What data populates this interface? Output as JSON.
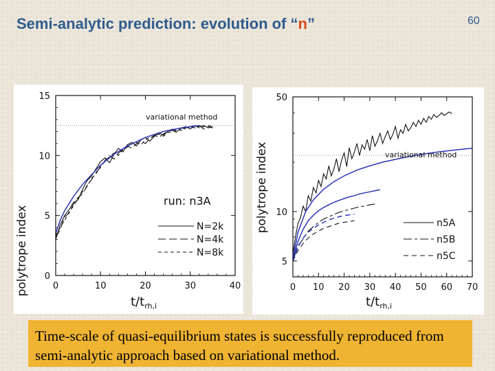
{
  "slide": {
    "title_main": "Semi-analytic prediction: evolution of “",
    "title_var": "n",
    "title_end": "”",
    "number": "60",
    "caption": "Time-scale of quasi-equilibrium states is successfully reproduced from semi-analytic approach based on variational method."
  },
  "colors": {
    "title": "#2e5b8e",
    "title_highlight": "#d2491a",
    "caption_bg": "#f0b433",
    "variational": "#2b35b5",
    "nbody": "#111111"
  },
  "chart_data": [
    {
      "type": "line",
      "xlabel_main": "t/t",
      "xlabel_sub": "rh,i",
      "ylabel": "polytrope index",
      "xlim": [
        0,
        40
      ],
      "ylim": [
        0,
        15
      ],
      "x_ticks": [
        0,
        10,
        20,
        30,
        40
      ],
      "y_ticks": [
        0,
        5,
        10,
        15
      ],
      "reference_line_y": 12.5,
      "annotation": "run: n3A",
      "variational_label": "variational method",
      "variational": {
        "name": "variational method",
        "x": [
          0,
          1,
          2,
          4,
          6,
          8,
          10,
          13,
          16,
          20,
          24,
          28,
          32
        ],
        "y": [
          3.5,
          4.6,
          5.4,
          6.6,
          7.6,
          8.4,
          9.2,
          10.1,
          10.8,
          11.5,
          12.0,
          12.3,
          12.5
        ]
      },
      "series": [
        {
          "name": "N=2k",
          "style": "solid",
          "x": [
            0,
            1,
            2,
            3,
            4,
            5,
            6,
            7,
            8,
            9,
            10,
            11,
            12,
            13,
            14,
            15,
            16,
            17,
            18,
            19,
            20,
            21,
            22,
            23,
            24,
            25,
            26,
            27,
            28,
            29,
            30,
            31,
            32,
            33,
            34,
            35
          ],
          "y": [
            3.0,
            4.2,
            5.0,
            5.5,
            6.1,
            6.3,
            7.2,
            7.9,
            8.3,
            8.9,
            9.5,
            9.8,
            9.4,
            10.1,
            10.6,
            10.3,
            10.9,
            11.1,
            10.8,
            11.3,
            11.5,
            11.2,
            11.6,
            11.9,
            11.7,
            12.0,
            12.2,
            12.0,
            12.3,
            12.4,
            12.2,
            12.5,
            12.4,
            12.5,
            12.3,
            12.4
          ]
        },
        {
          "name": "N=4k",
          "style": "long-dash",
          "x": [
            0,
            1,
            2,
            3,
            4,
            5,
            6,
            7,
            8,
            9,
            10,
            11,
            12,
            13,
            14,
            15,
            16,
            17,
            18,
            19,
            20,
            21,
            22,
            23,
            24,
            25,
            26,
            27,
            28,
            29,
            30,
            31,
            32,
            33,
            34,
            35
          ],
          "y": [
            3.2,
            3.8,
            4.9,
            5.2,
            6.0,
            6.5,
            6.8,
            7.5,
            8.0,
            8.6,
            9.0,
            9.6,
            10.0,
            9.7,
            10.2,
            10.5,
            10.8,
            10.6,
            11.0,
            11.2,
            11.0,
            11.4,
            11.7,
            11.5,
            11.8,
            12.0,
            12.1,
            11.9,
            12.3,
            12.2,
            12.4,
            12.3,
            12.5,
            12.2,
            12.4,
            12.3
          ]
        },
        {
          "name": "N=8k",
          "style": "short-dash",
          "x": [
            0,
            1,
            2,
            3,
            4,
            5,
            6,
            7,
            8,
            9,
            10,
            11,
            12,
            13,
            14,
            15,
            16,
            17,
            18,
            19,
            20,
            21,
            22,
            23,
            24,
            25,
            26,
            27,
            28,
            29,
            30,
            31,
            32,
            33,
            34,
            35
          ],
          "y": [
            3.3,
            4.0,
            4.6,
            5.3,
            5.8,
            6.4,
            7.0,
            7.4,
            8.1,
            8.5,
            9.1,
            9.5,
            9.9,
            10.2,
            10.0,
            10.5,
            10.7,
            11.0,
            11.1,
            10.9,
            11.3,
            11.5,
            11.6,
            11.8,
            11.6,
            11.9,
            12.0,
            12.2,
            12.1,
            12.3,
            12.4,
            12.5,
            12.3,
            12.4,
            12.5,
            12.4
          ]
        }
      ],
      "legend": [
        "N=2k",
        "N=4k",
        "N=8k"
      ],
      "legend_placement": "bottom-right"
    },
    {
      "type": "line",
      "xlabel_main": "t/t",
      "xlabel_sub": "rh,i",
      "ylabel": "polytrope index",
      "xlim": [
        0,
        70
      ],
      "ylim": [
        4,
        50
      ],
      "yscale": "log",
      "x_ticks": [
        0,
        10,
        20,
        30,
        40,
        50,
        60,
        70
      ],
      "y_ticks": [
        5,
        10,
        50
      ],
      "reference_line_y": 22,
      "variational_label": "variational method",
      "variational": [
        {
          "name": "n5A variational",
          "x": [
            0,
            2,
            5,
            8,
            12,
            16,
            20,
            25,
            30,
            35,
            40,
            45,
            50,
            55,
            60,
            65,
            70
          ],
          "y": [
            5.2,
            7.5,
            10.0,
            11.8,
            13.7,
            15.2,
            16.5,
            17.9,
            19.0,
            20.0,
            20.8,
            21.6,
            22.3,
            22.9,
            23.4,
            23.9,
            24.3
          ]
        },
        {
          "name": "n5B variational",
          "x": [
            0,
            2,
            4,
            6,
            8,
            10,
            12,
            14,
            16,
            18,
            20,
            22,
            24,
            26,
            28,
            30,
            32,
            34
          ],
          "y": [
            5.1,
            6.6,
            7.8,
            8.8,
            9.5,
            10.1,
            10.6,
            11.0,
            11.4,
            11.7,
            12.0,
            12.3,
            12.5,
            12.8,
            13.0,
            13.2,
            13.4,
            13.6
          ]
        },
        {
          "name": "n5C variational",
          "x": [
            0,
            2,
            4,
            6,
            8,
            10,
            12,
            14,
            16,
            18,
            20,
            22,
            24
          ],
          "y": [
            5.0,
            6.1,
            6.9,
            7.5,
            7.9,
            8.3,
            8.6,
            8.9,
            9.1,
            9.3,
            9.45,
            9.55,
            9.65
          ]
        }
      ],
      "series": [
        {
          "name": "n5A",
          "style": "solid",
          "x": [
            0,
            1,
            2,
            3,
            4,
            5,
            6,
            7,
            8,
            9,
            10,
            11,
            12,
            13,
            14,
            15,
            16,
            17,
            18,
            19,
            20,
            21,
            22,
            23,
            24,
            25,
            26,
            27,
            28,
            29,
            30,
            31,
            32,
            33,
            34,
            35,
            36,
            37,
            38,
            39,
            40,
            41,
            42,
            43,
            44,
            45,
            46,
            47,
            48,
            49,
            50,
            51,
            52,
            53,
            54,
            55,
            56,
            57,
            58,
            59,
            60,
            61,
            62
          ],
          "y": [
            5.5,
            7.0,
            8.5,
            9.2,
            10.8,
            10.0,
            12.5,
            11.6,
            14.0,
            13.0,
            15.5,
            14.2,
            17.0,
            15.8,
            19.0,
            16.5,
            18.2,
            21.0,
            17.5,
            20.5,
            22.8,
            18.8,
            24.5,
            21.0,
            23.0,
            26.0,
            22.0,
            25.5,
            24.0,
            27.5,
            23.5,
            29.0,
            25.0,
            27.0,
            30.0,
            26.0,
            28.5,
            31.0,
            27.5,
            29.5,
            33.0,
            28.0,
            31.5,
            30.0,
            34.0,
            31.0,
            32.5,
            35.0,
            33.0,
            36.0,
            34.0,
            37.0,
            35.0,
            38.0,
            36.5,
            39.0,
            37.5,
            38.5,
            40.0,
            38.5,
            39.5,
            40.5,
            39.5
          ]
        },
        {
          "name": "n5B",
          "style": "long-short-dash",
          "x": [
            0,
            2,
            4,
            6,
            8,
            10,
            12,
            14,
            16,
            18,
            20,
            22,
            24,
            26,
            28,
            30,
            32
          ],
          "y": [
            5.0,
            6.2,
            6.8,
            7.6,
            8.1,
            8.6,
            9.0,
            9.3,
            9.6,
            9.9,
            10.1,
            10.3,
            10.5,
            10.7,
            10.8,
            11.0,
            11.1
          ]
        },
        {
          "name": "n5C",
          "style": "dash",
          "x": [
            0,
            2,
            4,
            6,
            8,
            10,
            12,
            14,
            16,
            18,
            20,
            22,
            24
          ],
          "y": [
            5.0,
            5.8,
            6.4,
            6.9,
            7.3,
            7.6,
            7.9,
            8.1,
            8.3,
            8.5,
            8.6,
            8.7,
            8.8
          ]
        }
      ],
      "legend": [
        "n5A",
        "n5B",
        "n5C"
      ],
      "legend_placement": "bottom-right"
    }
  ]
}
